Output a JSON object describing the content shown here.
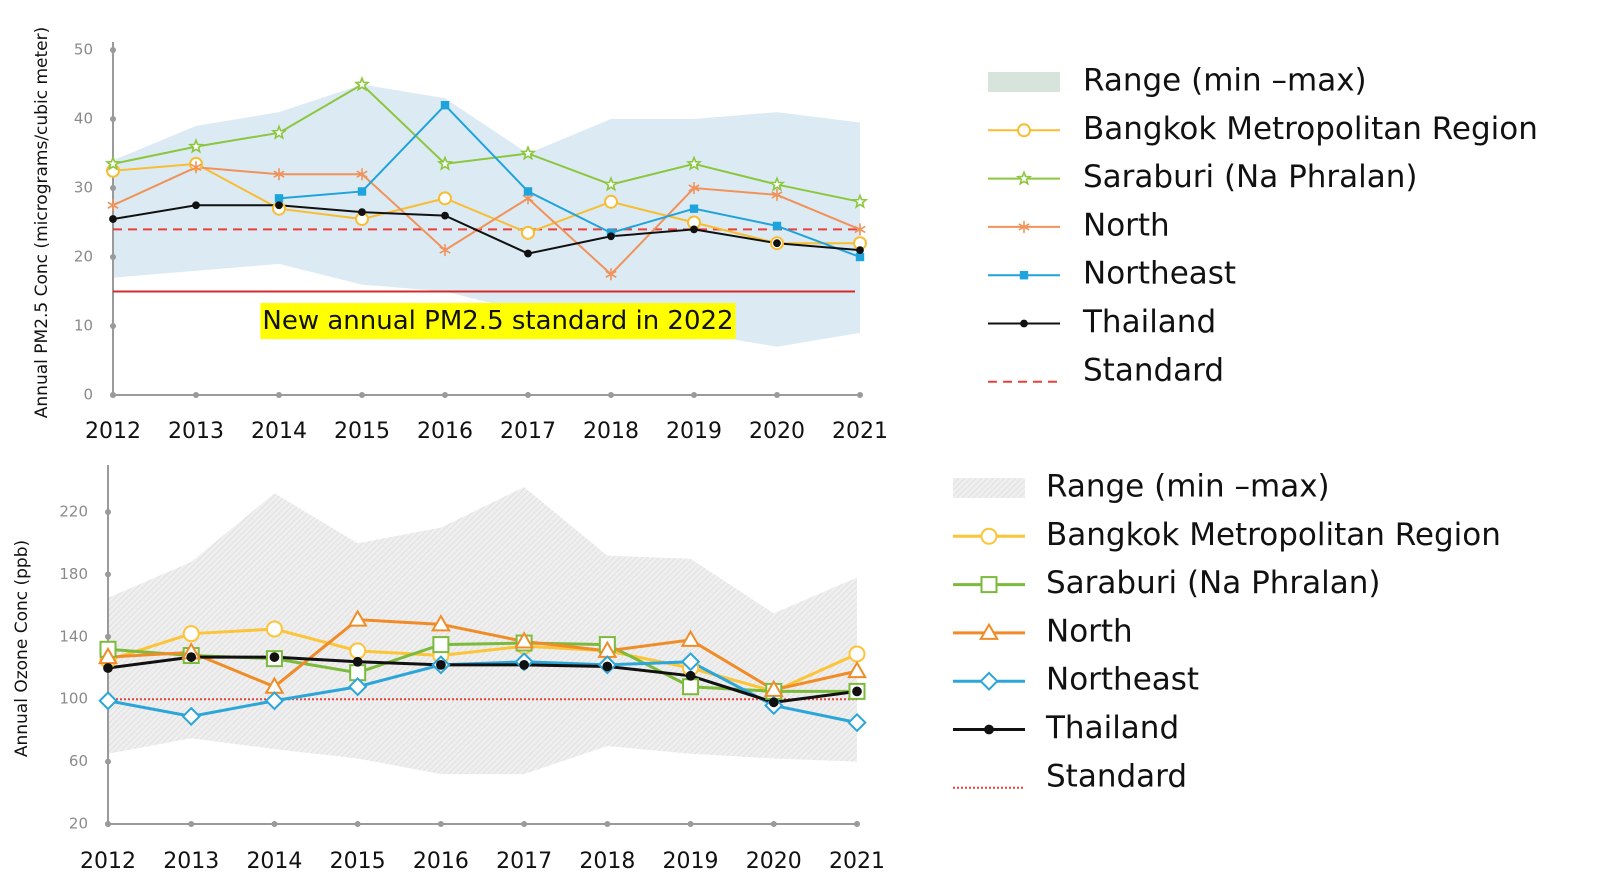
{
  "chart_data": [
    {
      "type": "line",
      "y_label": "Annual PM2.5 Conc (micrograms/cubic meter)",
      "categories": [
        "2012",
        "2013",
        "2014",
        "2015",
        "2016",
        "2017",
        "2018",
        "2019",
        "2020",
        "2021"
      ],
      "ylim": [
        0,
        50
      ],
      "yticks": [
        0,
        10,
        20,
        30,
        40,
        50
      ],
      "range": {
        "name": "Range (min –max)",
        "color": "#dcebf3",
        "low": [
          17,
          18,
          19,
          16,
          15,
          12,
          10,
          9,
          7,
          9
        ],
        "high": [
          34,
          39,
          41,
          45,
          43,
          35,
          40,
          40,
          41,
          39.5
        ]
      },
      "series": [
        {
          "name": "Bangkok Metropolitan Region",
          "color": "#f7bd33",
          "marker": "circle",
          "values": [
            32.5,
            33.5,
            27,
            25.5,
            28.5,
            23.5,
            28,
            25,
            22,
            22
          ]
        },
        {
          "name": "Saraburi (Na Phralan)",
          "color": "#8cc63f",
          "marker": "star",
          "values": [
            33.5,
            36,
            38,
            45,
            33.5,
            35,
            30.5,
            33.5,
            30.5,
            28
          ]
        },
        {
          "name": "North",
          "color": "#f0925a",
          "marker": "asterisk",
          "values": [
            27.5,
            33,
            32,
            32,
            21,
            28.5,
            17.5,
            30,
            29,
            24
          ]
        },
        {
          "name": "Northeast",
          "color": "#1fa3dc",
          "marker": "square",
          "values": [
            null,
            null,
            28.5,
            29.5,
            42,
            29.5,
            23.5,
            27,
            24.5,
            20
          ]
        },
        {
          "name": "Thailand",
          "color": "#111111",
          "marker": "dot",
          "values": [
            25.5,
            27.5,
            27.5,
            26.5,
            26,
            20.5,
            23,
            24,
            22,
            21
          ]
        }
      ],
      "standard": {
        "name": "Standard",
        "color": "#e8413c",
        "value": 24,
        "style": "dashed"
      },
      "annotation": {
        "text": "New annual PM2.5 standard in 2022",
        "value": 15,
        "color": "#d42a2a",
        "background": "#ffff00"
      }
    },
    {
      "type": "line",
      "y_label": "Annual Ozone Conc (ppb)",
      "categories": [
        "2012",
        "2013",
        "2014",
        "2015",
        "2016",
        "2017",
        "2018",
        "2019",
        "2020",
        "2021"
      ],
      "ylim": [
        20,
        245
      ],
      "yticks": [
        20,
        60,
        100,
        140,
        180,
        220
      ],
      "range": {
        "name": "Range (min –max)",
        "color": "#e6e6e6",
        "low": [
          65,
          75,
          68,
          62,
          52,
          52,
          70,
          65,
          62,
          60
        ],
        "high": [
          165,
          188,
          232,
          200,
          210,
          236,
          192,
          190,
          155,
          178
        ]
      },
      "series": [
        {
          "name": "Bangkok Metropolitan Region",
          "color": "#fcc438",
          "marker": "circle",
          "values": [
            125,
            142,
            145,
            131,
            128,
            134,
            131,
            120,
            105,
            129
          ]
        },
        {
          "name": "Saraburi (Na Phralan)",
          "color": "#7cba3c",
          "marker": "hsquare",
          "values": [
            132,
            128,
            126,
            117,
            135,
            136,
            135,
            108,
            105,
            105
          ]
        },
        {
          "name": "North",
          "color": "#f08c28",
          "marker": "triangle",
          "values": [
            127,
            130,
            108,
            151,
            148,
            137,
            131,
            138,
            106,
            118
          ]
        },
        {
          "name": "Northeast",
          "color": "#2ca5d8",
          "marker": "diamond",
          "values": [
            99,
            89,
            99,
            108,
            122,
            124,
            122,
            124,
            96,
            85
          ]
        },
        {
          "name": "Thailand",
          "color": "#111111",
          "marker": "dot",
          "values": [
            120,
            127,
            127,
            124,
            122,
            122,
            121,
            115,
            98,
            105
          ]
        }
      ],
      "standard": {
        "name": "Standard",
        "color": "#e8413c",
        "value": 100,
        "style": "dotted"
      }
    }
  ]
}
